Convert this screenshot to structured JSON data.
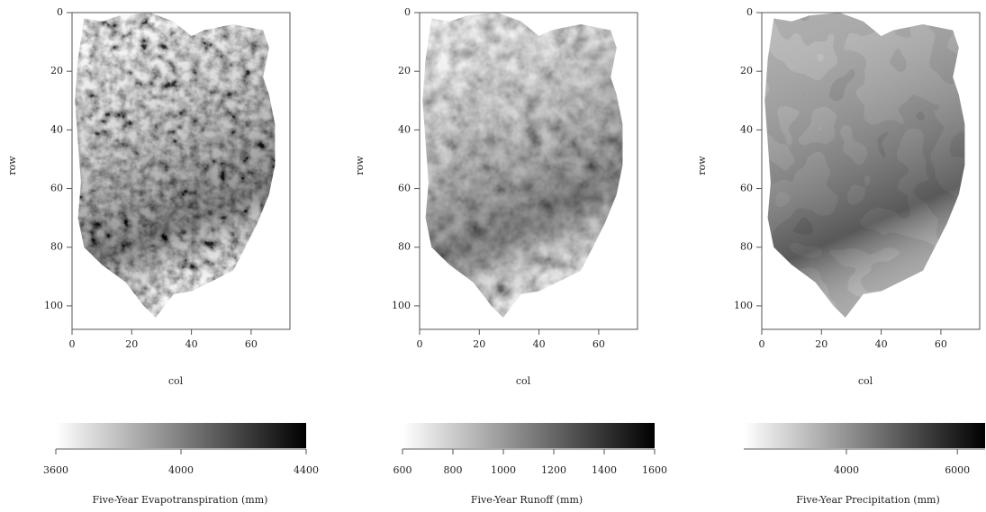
{
  "chart_data": [
    {
      "type": "heatmap",
      "xlabel": "col",
      "ylabel": "row",
      "xlim": [
        0,
        73
      ],
      "ylim": [
        108,
        0
      ],
      "xticks": [
        0,
        20,
        40,
        60
      ],
      "yticks": [
        0,
        20,
        40,
        60,
        80,
        100
      ],
      "colorbar": {
        "label": "Five-Year Evapotranspiration (mm)",
        "lim": [
          3600,
          4400
        ],
        "ticks": [
          3600,
          4000,
          4400
        ],
        "colors": [
          "#ffffff",
          "#000000"
        ]
      }
    },
    {
      "type": "heatmap",
      "xlabel": "col",
      "ylabel": "row",
      "xlim": [
        0,
        73
      ],
      "ylim": [
        108,
        0
      ],
      "xticks": [
        0,
        20,
        40,
        60
      ],
      "yticks": [
        0,
        20,
        40,
        60,
        80,
        100
      ],
      "colorbar": {
        "label": "Five-Year Runoff (mm)",
        "lim": [
          600,
          1600
        ],
        "ticks": [
          600,
          800,
          1000,
          1200,
          1400,
          1600
        ],
        "colors": [
          "#ffffff",
          "#000000"
        ]
      }
    },
    {
      "type": "heatmap",
      "xlabel": "col",
      "ylabel": "row",
      "xlim": [
        0,
        73
      ],
      "ylim": [
        108,
        0
      ],
      "xticks": [
        0,
        20,
        40,
        60
      ],
      "yticks": [
        0,
        20,
        40,
        60,
        80,
        100
      ],
      "colorbar": {
        "label": "Five-Year Precipitation (mm)",
        "lim": [
          2150,
          6500
        ],
        "ticks": [
          4000,
          6000
        ],
        "colors": [
          "#ffffff",
          "#000000"
        ]
      }
    }
  ]
}
